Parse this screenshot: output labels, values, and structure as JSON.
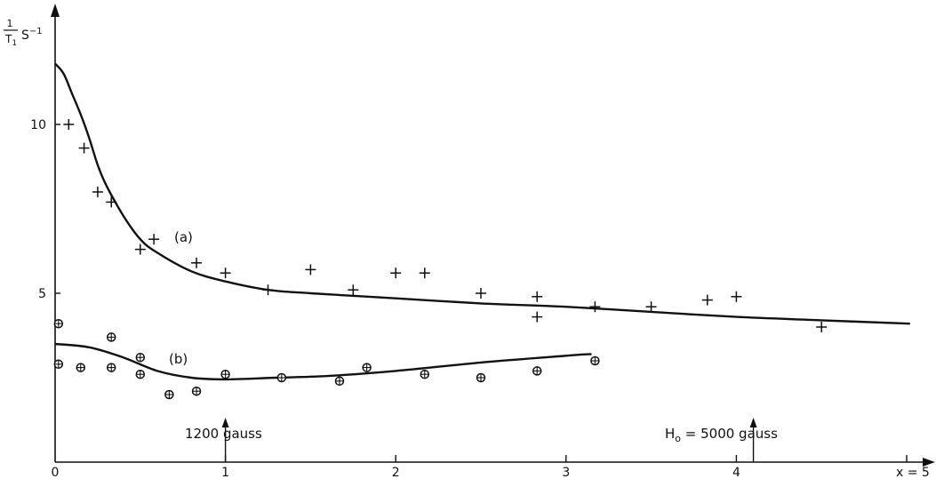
{
  "chart_data": {
    "type": "scatter",
    "title": "",
    "ylabel": {
      "numerator": "1",
      "denominator": "T",
      "denominator_sub": "1",
      "unit": "S",
      "unit_sup": "−1"
    },
    "xlabel": "",
    "xlim": [
      0,
      5.05
    ],
    "ylim": [
      0,
      12.3
    ],
    "x_ticks": [
      {
        "value": 0,
        "label": "0"
      },
      {
        "value": 1,
        "label": "1"
      },
      {
        "value": 2,
        "label": "2"
      },
      {
        "value": 3,
        "label": "3"
      },
      {
        "value": 4,
        "label": "4"
      },
      {
        "value": 5,
        "label": "x = 5"
      }
    ],
    "y_ticks": [
      {
        "value": 5,
        "label": "5"
      },
      {
        "value": 10,
        "label": "10"
      }
    ],
    "grid": false,
    "legend": "none",
    "series": [
      {
        "name": "(a)",
        "marker": "plus",
        "points": [
          [
            0.08,
            10.0
          ],
          [
            0.17,
            9.3
          ],
          [
            0.25,
            8.0
          ],
          [
            0.33,
            7.7
          ],
          [
            0.5,
            6.3
          ],
          [
            0.58,
            6.6
          ],
          [
            0.83,
            5.9
          ],
          [
            1.0,
            5.6
          ],
          [
            1.25,
            5.1
          ],
          [
            1.5,
            5.7
          ],
          [
            1.75,
            5.1
          ],
          [
            2.0,
            5.6
          ],
          [
            2.17,
            5.6
          ],
          [
            2.5,
            5.0
          ],
          [
            2.83,
            4.9
          ],
          [
            2.83,
            4.3
          ],
          [
            3.17,
            4.6
          ],
          [
            3.5,
            4.6
          ],
          [
            3.83,
            4.8
          ],
          [
            4.0,
            4.9
          ],
          [
            4.5,
            4.0
          ]
        ],
        "curve": [
          [
            0,
            11.8
          ],
          [
            0.05,
            11.5
          ],
          [
            0.1,
            10.9
          ],
          [
            0.15,
            10.3
          ],
          [
            0.2,
            9.6
          ],
          [
            0.25,
            8.8
          ],
          [
            0.3,
            8.2
          ],
          [
            0.4,
            7.3
          ],
          [
            0.5,
            6.6
          ],
          [
            0.6,
            6.2
          ],
          [
            0.8,
            5.65
          ],
          [
            1.0,
            5.35
          ],
          [
            1.25,
            5.1
          ],
          [
            1.5,
            5.0
          ],
          [
            2.0,
            4.85
          ],
          [
            2.5,
            4.7
          ],
          [
            3.0,
            4.6
          ],
          [
            3.5,
            4.45
          ],
          [
            4.0,
            4.3
          ],
          [
            4.5,
            4.2
          ],
          [
            5.02,
            4.1
          ]
        ]
      },
      {
        "name": "(b)",
        "marker": "circle-plus",
        "points": [
          [
            0.02,
            4.1
          ],
          [
            0.02,
            2.9
          ],
          [
            0.15,
            2.8
          ],
          [
            0.33,
            3.7
          ],
          [
            0.33,
            2.8
          ],
          [
            0.5,
            3.1
          ],
          [
            0.5,
            2.6
          ],
          [
            0.67,
            2.0
          ],
          [
            0.83,
            2.1
          ],
          [
            1.0,
            2.6
          ],
          [
            1.33,
            2.5
          ],
          [
            1.67,
            2.4
          ],
          [
            1.83,
            2.8
          ],
          [
            2.17,
            2.6
          ],
          [
            2.5,
            2.5
          ],
          [
            2.83,
            2.7
          ],
          [
            3.17,
            3.0
          ]
        ],
        "curve": [
          [
            0,
            3.5
          ],
          [
            0.2,
            3.4
          ],
          [
            0.4,
            3.1
          ],
          [
            0.6,
            2.7
          ],
          [
            0.8,
            2.5
          ],
          [
            1.0,
            2.45
          ],
          [
            1.3,
            2.5
          ],
          [
            1.6,
            2.55
          ],
          [
            2.0,
            2.7
          ],
          [
            2.5,
            2.95
          ],
          [
            3.0,
            3.15
          ],
          [
            3.15,
            3.2
          ]
        ]
      }
    ],
    "annotations": [
      {
        "text": "1200 gauss",
        "x": 1.0,
        "arrow": true
      },
      {
        "text": "H",
        "sub": "o",
        "rest": " = 5000 gauss",
        "x": 4.1,
        "arrow": true
      },
      {
        "text": "(a)",
        "x": 0.8,
        "y": 6.6
      },
      {
        "text": "(b)",
        "x": 0.77,
        "y": 3.05
      }
    ]
  }
}
